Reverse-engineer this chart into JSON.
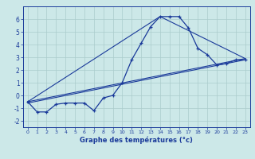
{
  "xlabel": "Graphe des températures (°c)",
  "background_color": "#cce8e8",
  "grid_color": "#aacccc",
  "line_color": "#1a3a9a",
  "x_ticks": [
    0,
    1,
    2,
    3,
    4,
    5,
    6,
    7,
    8,
    9,
    10,
    11,
    12,
    13,
    14,
    15,
    16,
    17,
    18,
    19,
    20,
    21,
    22,
    23
  ],
  "ylim": [
    -2.5,
    7.0
  ],
  "xlim": [
    -0.5,
    23.5
  ],
  "yticks": [
    -2,
    -1,
    0,
    1,
    2,
    3,
    4,
    5,
    6
  ],
  "series": {
    "main": {
      "x": [
        0,
        1,
        2,
        3,
        4,
        5,
        6,
        7,
        8,
        9,
        10,
        11,
        12,
        13,
        14,
        15,
        16,
        17,
        18,
        19,
        20,
        21,
        22,
        23
      ],
      "y": [
        -0.5,
        -1.3,
        -1.3,
        -0.7,
        -0.6,
        -0.6,
        -0.6,
        -1.2,
        -0.2,
        0.0,
        1.0,
        2.8,
        4.1,
        5.4,
        6.2,
        6.2,
        6.2,
        5.3,
        3.7,
        3.2,
        2.4,
        2.5,
        2.8,
        2.8
      ]
    },
    "trend1": {
      "x": [
        0,
        23
      ],
      "y": [
        -0.5,
        2.9
      ]
    },
    "trend2": {
      "x": [
        0,
        14,
        23
      ],
      "y": [
        -0.5,
        6.2,
        2.9
      ]
    },
    "trend3": {
      "x": [
        0,
        23
      ],
      "y": [
        -0.6,
        2.8
      ]
    }
  },
  "figsize": [
    3.2,
    2.0
  ],
  "dpi": 100
}
